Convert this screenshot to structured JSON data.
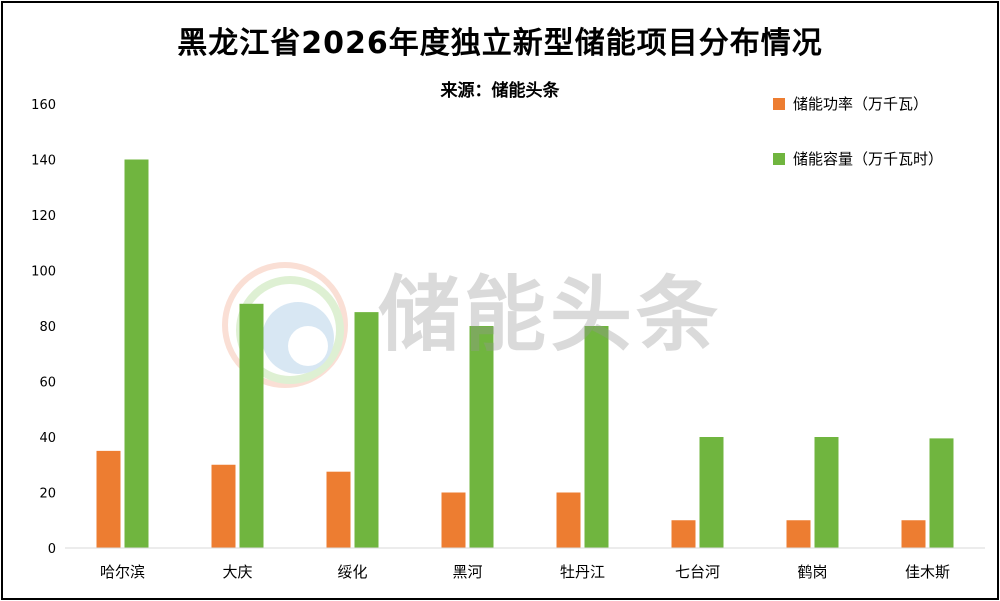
{
  "colors": {
    "power": "#ED7D31",
    "capacity": "#70B53F"
  },
  "watermark": {
    "text": "储能头条"
  },
  "chart_data": {
    "type": "bar",
    "title": "黑龙江省2026年度独立新型储能项目分布情况",
    "subtitle": "来源：储能头条",
    "categories": [
      "哈尔滨",
      "大庆",
      "绥化",
      "黑河",
      "牡丹江",
      "七台河",
      "鹤岗",
      "佳木斯"
    ],
    "series": [
      {
        "name": "储能功率（万千瓦）",
        "values": [
          35,
          30,
          27.5,
          20,
          20,
          10,
          10,
          10
        ]
      },
      {
        "name": "储能容量（万千瓦时）",
        "values": [
          140,
          88,
          85,
          80,
          80,
          40,
          40,
          39.5
        ]
      }
    ],
    "ylim": [
      0,
      160
    ],
    "yticks": [
      0,
      20,
      40,
      60,
      80,
      100,
      120,
      140,
      160
    ],
    "grid": false,
    "legend_position": "top-right"
  }
}
